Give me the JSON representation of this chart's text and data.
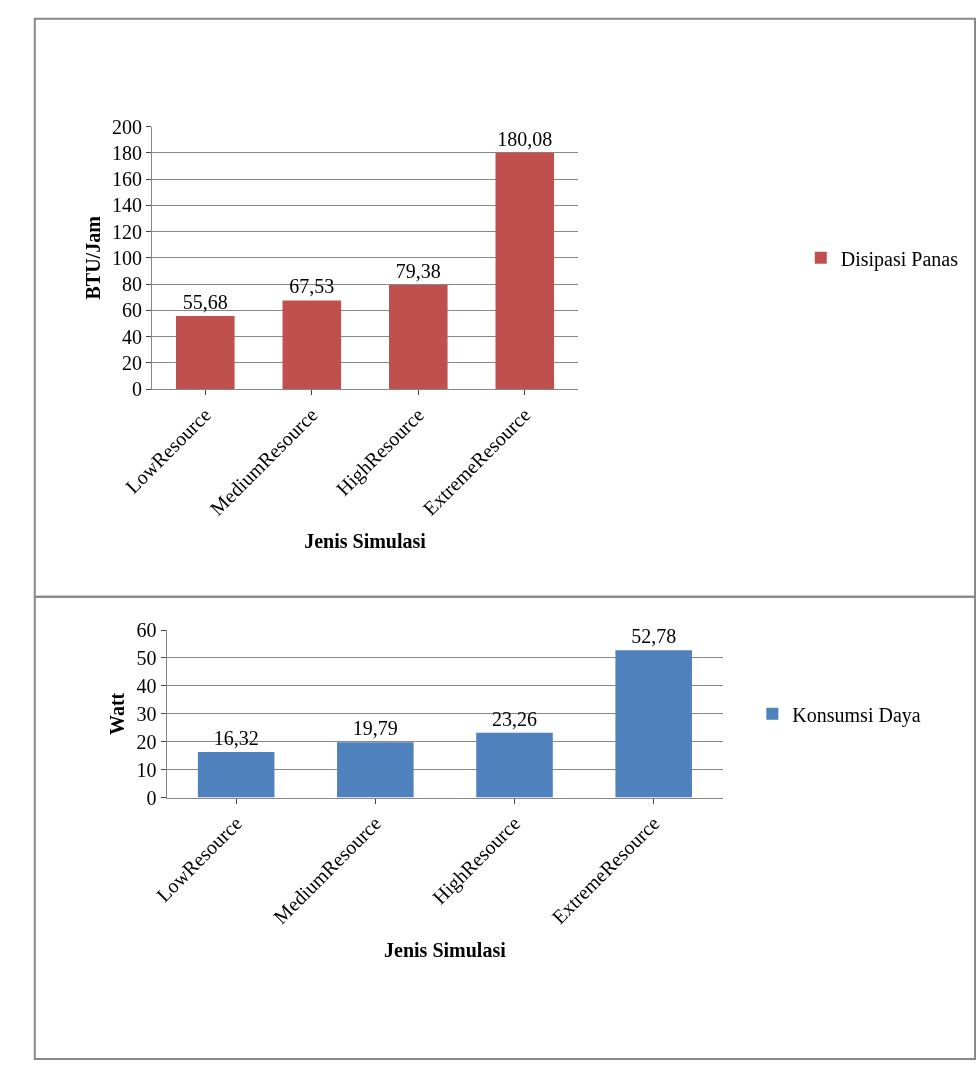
{
  "chart_data": [
    {
      "type": "bar",
      "categories": [
        "LowResource",
        "MediumResource",
        "HighResource",
        "ExtremeResource"
      ],
      "series": [
        {
          "name": "Disipasi Panas",
          "color": "#c0504d",
          "values": [
            55.68,
            67.53,
            79.38,
            180.08
          ]
        }
      ],
      "value_labels": [
        "55,68",
        "67,53",
        "79,38",
        "180,08"
      ],
      "xlabel": "Jenis Simulasi",
      "ylabel": "BTU/Jam",
      "ylim": [
        0,
        200
      ],
      "yticks": [
        0,
        20,
        40,
        60,
        80,
        100,
        120,
        140,
        160,
        180,
        200
      ],
      "grid": "y",
      "legend": "right"
    },
    {
      "type": "bar",
      "categories": [
        "LowResource",
        "MediumResource",
        "HighResource",
        "ExtremeResource"
      ],
      "series": [
        {
          "name": "Konsumsi Daya",
          "color": "#4f81bd",
          "values": [
            16.32,
            19.79,
            23.26,
            52.78
          ]
        }
      ],
      "value_labels": [
        "16,32",
        "19,79",
        "23,26",
        "52,78"
      ],
      "xlabel": "Jenis Simulasi",
      "ylabel": "Watt",
      "ylim": [
        0,
        60
      ],
      "yticks": [
        0,
        10,
        20,
        30,
        40,
        50,
        60
      ],
      "grid": "y",
      "legend": "right"
    }
  ]
}
